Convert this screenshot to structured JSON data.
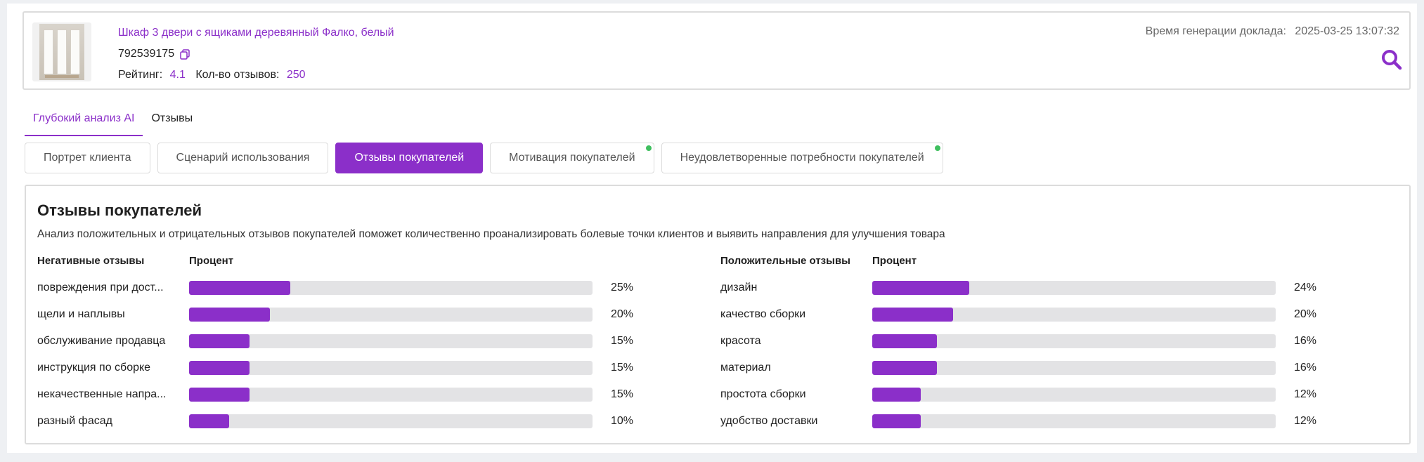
{
  "header": {
    "product_title": "Шкаф 3 двери с ящиками деревянный Фалко, белый",
    "sku": "792539175",
    "rating_label": "Рейтинг:",
    "rating_value": "4.1",
    "reviews_label": "Кол-во отзывов:",
    "reviews_value": "250",
    "gen_time_label": "Время генерации доклада:",
    "gen_time_value": "2025-03-25 13:07:32"
  },
  "main_tabs": [
    "Глубокий анализ AI",
    "Отзывы"
  ],
  "sub_tabs": [
    "Портрет клиента",
    "Сценарий использования",
    "Отзывы покупателей",
    "Мотивация покупателей",
    "Неудовлетворенные потребности покупателей"
  ],
  "section": {
    "title": "Отзывы покупателей",
    "description": "Анализ положительных и отрицательных отзывов покупателей поможет количественно проанализировать болевые точки клиентов и выявить направления для улучшения товара"
  },
  "negative": {
    "header_label": "Негативные отзывы",
    "header_pct": "Процент",
    "rows": [
      {
        "label": "повреждения при дост...",
        "pct": "25%",
        "value": 25
      },
      {
        "label": "щели и наплывы",
        "pct": "20%",
        "value": 20
      },
      {
        "label": "обслуживание продавца",
        "pct": "15%",
        "value": 15
      },
      {
        "label": "инструкция по сборке",
        "pct": "15%",
        "value": 15
      },
      {
        "label": "некачественные напра...",
        "pct": "15%",
        "value": 15
      },
      {
        "label": "разный фасад",
        "pct": "10%",
        "value": 10
      }
    ]
  },
  "positive": {
    "header_label": "Положительные отзывы",
    "header_pct": "Процент",
    "rows": [
      {
        "label": "дизайн",
        "pct": "24%",
        "value": 24
      },
      {
        "label": "качество сборки",
        "pct": "20%",
        "value": 20
      },
      {
        "label": "красота",
        "pct": "16%",
        "value": 16
      },
      {
        "label": "материал",
        "pct": "16%",
        "value": 16
      },
      {
        "label": "простота сборки",
        "pct": "12%",
        "value": 12
      },
      {
        "label": "удобство доставки",
        "pct": "12%",
        "value": 12
      }
    ]
  },
  "colors": {
    "accent": "#8b2fc9",
    "dot": "#3fbf5f",
    "track": "#e3e3e5"
  },
  "icons": {
    "copy": "copy-icon",
    "search": "search-icon"
  }
}
